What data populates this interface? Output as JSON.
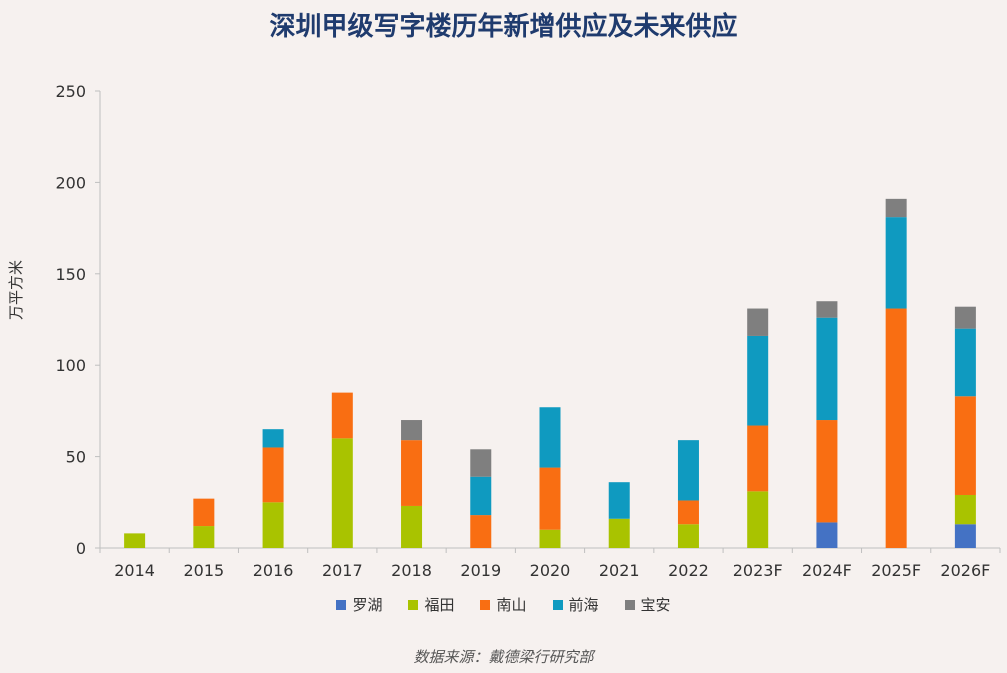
{
  "chart_data": {
    "type": "bar",
    "stacked": true,
    "title": "深圳甲级写字楼历年新增供应及未来供应",
    "ylabel": "万平方米",
    "xlabel": "",
    "ylim": [
      0,
      250
    ],
    "yticks": [
      0,
      50,
      100,
      150,
      200,
      250
    ],
    "categories": [
      "2014",
      "2015",
      "2016",
      "2017",
      "2018",
      "2019",
      "2020",
      "2021",
      "2022",
      "2023F",
      "2024F",
      "2025F",
      "2026F"
    ],
    "series": [
      {
        "name": "罗湖",
        "color": "#4472c4",
        "values": [
          0,
          0,
          0,
          0,
          0,
          0,
          0,
          0,
          0,
          0,
          14,
          0,
          13
        ]
      },
      {
        "name": "福田",
        "color": "#a9c300",
        "values": [
          8,
          12,
          25,
          60,
          23,
          0,
          10,
          16,
          13,
          31,
          0,
          0,
          16
        ]
      },
      {
        "name": "南山",
        "color": "#f96e12",
        "values": [
          0,
          15,
          30,
          25,
          36,
          18,
          34,
          0,
          13,
          36,
          56,
          131,
          54
        ]
      },
      {
        "name": "前海",
        "color": "#0f9ac0",
        "values": [
          0,
          0,
          10,
          0,
          0,
          21,
          33,
          20,
          33,
          49,
          56,
          50,
          37
        ]
      },
      {
        "name": "宝安",
        "color": "#7f7f7f",
        "values": [
          0,
          0,
          0,
          0,
          11,
          15,
          0,
          0,
          0,
          15,
          9,
          10,
          12
        ]
      }
    ],
    "legend_position": "bottom",
    "grid": false
  },
  "source_note": "数据来源：戴德梁行研究部"
}
